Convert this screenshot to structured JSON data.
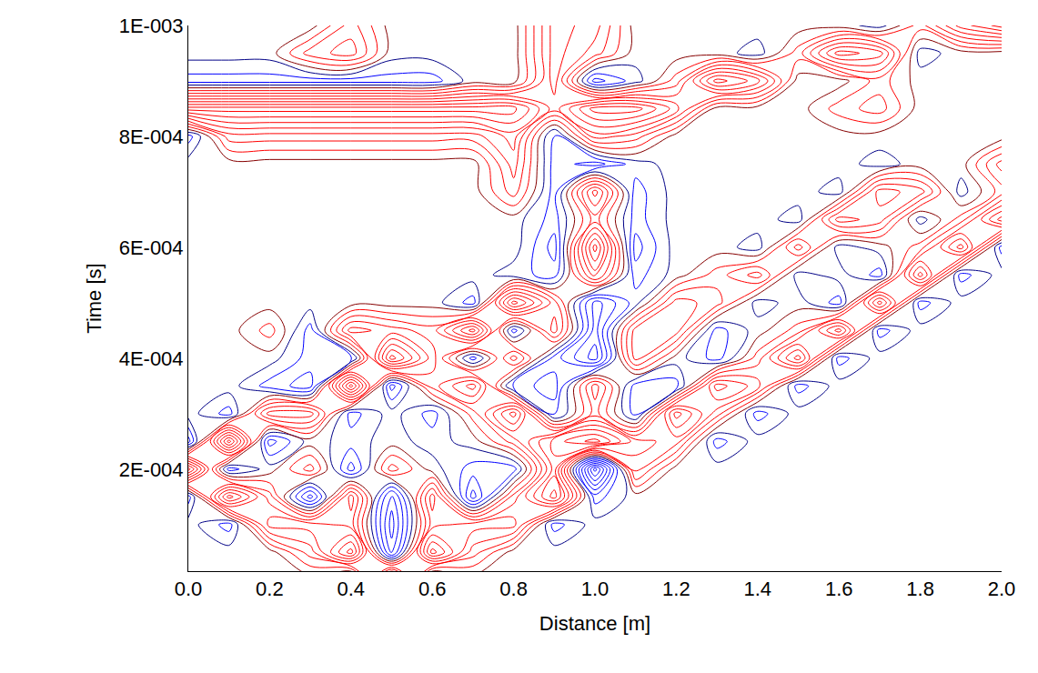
{
  "chart_data": {
    "type": "contour",
    "x_label": "Distance [m]",
    "y_label": "Time [s]",
    "x": [
      0.0,
      0.1,
      0.2,
      0.3,
      0.4,
      0.5,
      0.6,
      0.7,
      0.8,
      0.9,
      1.0,
      1.1,
      1.2,
      1.3,
      1.4,
      1.5,
      1.6,
      1.7,
      1.8,
      1.9,
      2.0
    ],
    "y": [
      0,
      5e-05,
      0.0001,
      0.00015,
      0.0002,
      0.00025,
      0.0003,
      0.00035,
      0.0004,
      0.00045,
      0.0005,
      0.00055,
      0.0006,
      0.00065,
      0.0007,
      0.00075,
      0.0008,
      0.00085,
      0.0009,
      0.00095,
      0.001
    ],
    "z": [
      [
        0,
        0,
        0,
        0,
        -3,
        10,
        -3,
        0,
        0,
        0,
        0,
        0,
        0,
        0,
        0,
        0,
        0,
        0,
        0,
        0,
        0
      ],
      [
        0,
        0,
        0,
        3,
        8,
        -4,
        8,
        3,
        0,
        0,
        0,
        0,
        0,
        0,
        0,
        0,
        0,
        0,
        0,
        0,
        0
      ],
      [
        0,
        -2,
        5,
        5,
        4,
        -5,
        4,
        5,
        5,
        -2,
        0,
        0,
        0,
        0,
        0,
        0,
        0,
        0,
        0,
        0,
        0
      ],
      [
        -2,
        8,
        3,
        -4,
        5,
        -4,
        5,
        -4,
        3,
        8,
        -2,
        0,
        0,
        0,
        0,
        0,
        0,
        0,
        0,
        0,
        0
      ],
      [
        9,
        -2,
        0,
        3,
        -3,
        3,
        0,
        -2,
        -2,
        6,
        -8,
        4,
        0,
        0,
        0,
        0,
        0,
        0,
        0,
        0,
        0
      ],
      [
        -3,
        9,
        -3,
        0,
        -1,
        0,
        -1,
        0,
        3,
        7,
        9,
        5,
        4,
        -2,
        0,
        0,
        0,
        0,
        0,
        0,
        0
      ],
      [
        0,
        -2,
        5,
        5,
        -2,
        0,
        -2,
        2,
        7,
        -2,
        3,
        -2,
        7,
        3,
        -2,
        0,
        0,
        0,
        0,
        0,
        0
      ],
      [
        0,
        0,
        -2,
        -3,
        9,
        -3,
        3,
        6,
        -2,
        -3,
        4,
        -2,
        -2,
        6,
        4,
        -2,
        0,
        0,
        0,
        0,
        0
      ],
      [
        0,
        0,
        0,
        -2,
        -2,
        9,
        4,
        -2,
        4,
        -2,
        -5,
        4,
        0,
        -2,
        2,
        7,
        -2,
        0,
        0,
        0,
        0
      ],
      [
        0,
        0,
        2,
        -2,
        5,
        4,
        3,
        8,
        -2,
        4,
        -4,
        4,
        4,
        -2,
        0,
        2,
        7,
        -2,
        0,
        0,
        0
      ],
      [
        0,
        0,
        0,
        0,
        0,
        0,
        0,
        -2,
        8,
        3,
        -4,
        -1,
        4,
        3,
        -1,
        0,
        -2,
        7,
        -2,
        0,
        0
      ],
      [
        0,
        0,
        0,
        0,
        0,
        0,
        0,
        0,
        -1,
        -2,
        5,
        -2,
        0,
        2,
        4,
        -1,
        0,
        -2,
        7,
        -2,
        0
      ],
      [
        0,
        0,
        0,
        0,
        0,
        0,
        0,
        0,
        0,
        -3,
        8,
        -3,
        0,
        0,
        -1,
        4,
        -1,
        0,
        2,
        7,
        -2
      ],
      [
        0,
        0,
        0,
        0,
        0,
        0,
        0,
        0,
        0,
        -2,
        3,
        -2,
        0,
        0,
        0,
        -1,
        5,
        4,
        -1,
        2,
        7
      ],
      [
        0,
        0,
        0,
        0,
        0,
        0,
        0,
        0,
        3,
        -2,
        6,
        -2,
        0,
        0,
        0,
        0,
        -1,
        5,
        4,
        -1,
        2
      ],
      [
        0,
        0,
        0,
        0,
        0,
        0,
        0,
        0,
        4,
        -2,
        -3,
        -1,
        0,
        0,
        0,
        0,
        0,
        -1,
        0,
        0,
        4
      ],
      [
        -2,
        3,
        3,
        3,
        3,
        3,
        3,
        3,
        5,
        -2,
        4,
        3,
        0,
        0,
        0,
        0,
        0,
        0,
        0,
        0,
        0
      ],
      [
        8,
        8,
        8,
        8,
        8,
        8,
        8,
        8,
        8,
        4,
        8,
        8,
        5,
        0,
        0,
        0,
        2,
        3,
        0,
        0,
        0
      ],
      [
        -2,
        -2,
        -2,
        -2,
        -2,
        -2,
        -2,
        0,
        0,
        5,
        -3,
        -1,
        2,
        8,
        6,
        0,
        0,
        2,
        0,
        0,
        0
      ],
      [
        0,
        0,
        0,
        3,
        4,
        0,
        0,
        0,
        0,
        5,
        3,
        0,
        0,
        0,
        -1,
        2,
        7,
        6,
        -1,
        0,
        0
      ],
      [
        0,
        0,
        0,
        0,
        3,
        0,
        0,
        0,
        0,
        5,
        4,
        0,
        0,
        0,
        0,
        0,
        0,
        -1,
        2,
        6,
        8
      ]
    ],
    "zlim": [
      -10,
      10
    ],
    "levels": {
      "start": -9.5,
      "end": 9.5,
      "size": 1
    },
    "colors": [
      "#0000ff",
      "#000000",
      "#ff0000"
    ],
    "xlim": [
      0,
      2.0
    ],
    "ylim": [
      1.6e-05,
      0.001
    ],
    "xticks": [
      {
        "value": 0,
        "label": "0.0"
      },
      {
        "value": 0.2,
        "label": "0.2"
      },
      {
        "value": 0.4,
        "label": "0.4"
      },
      {
        "value": 0.6,
        "label": "0.6"
      },
      {
        "value": 0.8,
        "label": "0.8"
      },
      {
        "value": 1.0,
        "label": "1.0"
      },
      {
        "value": 1.2,
        "label": "1.2"
      },
      {
        "value": 1.4,
        "label": "1.4"
      },
      {
        "value": 1.6,
        "label": "1.6"
      },
      {
        "value": 1.8,
        "label": "1.8"
      },
      {
        "value": 2.0,
        "label": "2.0"
      }
    ],
    "yticks": [
      {
        "value": 0.0002,
        "label": "2E-004"
      },
      {
        "value": 0.0004,
        "label": "4E-004"
      },
      {
        "value": 0.0006,
        "label": "6E-004"
      },
      {
        "value": 0.0008,
        "label": "8E-004"
      },
      {
        "value": 0.001,
        "label": "1E-003"
      }
    ],
    "grid": false
  }
}
